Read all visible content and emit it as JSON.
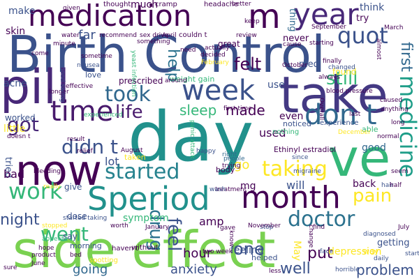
{
  "palette": {
    "dark_purple": "#440154",
    "indigo": "#3b528b",
    "blue": "#31688e",
    "teal": "#21918c",
    "green": "#35b779",
    "lime": "#90d743",
    "yellow": "#fde725",
    "navy": "#482878"
  },
  "words": [
    {
      "text": "Birth Control",
      "color": "#3b528b"
    },
    {
      "text": "side effect",
      "color": "#7ad151"
    },
    {
      "text": "day",
      "color": "#21918c"
    },
    {
      "text": "take",
      "color": "#443983"
    },
    {
      "text": "pill",
      "color": "#482878"
    },
    {
      "text": "now",
      "color": "#440154"
    },
    {
      "text": "ve",
      "color": "#35b779"
    },
    {
      "text": "Speriod",
      "color": "#21918c"
    },
    {
      "text": "month",
      "color": "#440154"
    },
    {
      "text": "medication",
      "color": "#440154"
    },
    {
      "text": "year",
      "color": "#482878"
    },
    {
      "text": "m",
      "color": "#440154"
    },
    {
      "text": "week",
      "color": "#3b528b"
    },
    {
      "text": "time",
      "color": "#481a6c"
    },
    {
      "text": "don t",
      "color": "#31688e"
    },
    {
      "text": "medicine",
      "color": "#1f9e89"
    },
    {
      "text": "quot",
      "color": "#3b528b"
    },
    {
      "text": "took",
      "color": "#31688e"
    },
    {
      "text": "started",
      "color": "#26828e"
    },
    {
      "text": "taking",
      "color": "#fde725"
    },
    {
      "text": "work",
      "color": "#35b779"
    },
    {
      "text": "doctor",
      "color": "#2c728e"
    },
    {
      "text": "got",
      "color": "#482878"
    },
    {
      "text": "didn t",
      "color": "#3b528b"
    },
    {
      "text": "life",
      "color": "#481a6c"
    },
    {
      "text": "feel",
      "color": "#3b528b"
    },
    {
      "text": "drug",
      "color": "#2c728e"
    },
    {
      "text": "went",
      "color": "#35b779"
    },
    {
      "text": "pain",
      "color": "#fde725"
    },
    {
      "text": "still",
      "color": "#35b779"
    },
    {
      "text": "first",
      "color": "#31688e"
    },
    {
      "text": "help",
      "color": "#2c728e"
    },
    {
      "text": "sleep",
      "color": "#35b779"
    },
    {
      "text": "made",
      "color": "#440154"
    },
    {
      "text": "felt",
      "color": "#440154"
    },
    {
      "text": "one",
      "color": "#3b528b"
    },
    {
      "text": "well",
      "color": "#3b528b"
    },
    {
      "text": "put",
      "color": "#440154"
    },
    {
      "text": "problem",
      "color": "#3b528b"
    },
    {
      "text": "hour",
      "color": "#440154"
    },
    {
      "text": "night",
      "color": "#3b528b"
    },
    {
      "text": "anxiety",
      "color": "#3b528b"
    },
    {
      "text": "going",
      "color": "#31688e"
    },
    {
      "text": "back",
      "color": "#440154"
    },
    {
      "text": "will",
      "color": "#3b528b"
    },
    {
      "text": "amp",
      "color": "#440154"
    },
    {
      "text": "mg",
      "color": "#440154"
    },
    {
      "text": "used",
      "color": "#440154"
    },
    {
      "text": "go",
      "color": "#fde725"
    },
    {
      "text": "depression",
      "color": "#fde725"
    },
    {
      "text": "good",
      "color": "#31688e"
    },
    {
      "text": "lot",
      "color": "#3b528b"
    },
    {
      "text": "even",
      "color": "#440154"
    },
    {
      "text": "use",
      "color": "#3b528b"
    },
    {
      "text": "far",
      "color": "#3b528b"
    },
    {
      "text": "much",
      "color": "#440154"
    },
    {
      "text": "make",
      "color": "#3b528b"
    },
    {
      "text": "skin",
      "color": "#440154"
    },
    {
      "text": "acne",
      "color": "#3b528b"
    },
    {
      "text": "little",
      "color": "#fde725"
    },
    {
      "text": "worked",
      "color": "#3b528b"
    },
    {
      "text": "tried",
      "color": "#3b528b"
    },
    {
      "text": "bad",
      "color": "#440154"
    },
    {
      "text": "give",
      "color": "#3b528b"
    },
    {
      "text": "symptom",
      "color": "#35b779"
    },
    {
      "text": "feeling",
      "color": "#3b528b"
    },
    {
      "text": "May",
      "color": "#fde725"
    },
    {
      "text": "getting",
      "color": "#3b528b"
    },
    {
      "text": "think",
      "color": "#3b528b"
    },
    {
      "text": "try",
      "color": "#440154"
    },
    {
      "text": "never",
      "color": "#440154"
    },
    {
      "text": "thing",
      "color": "#31688e"
    },
    {
      "text": "med",
      "color": "#3b528b"
    },
    {
      "text": "found",
      "color": "#fde725"
    },
    {
      "text": "say",
      "color": "#3b528b"
    },
    {
      "text": "morning",
      "color": "#3b528b"
    },
    {
      "text": "love",
      "color": "#3b528b"
    },
    {
      "text": "weight gain",
      "color": "#35b779"
    },
    {
      "text": "prescribed",
      "color": "#440154"
    },
    {
      "text": "dose",
      "color": "#3b528b"
    },
    {
      "text": "body",
      "color": "#440154"
    },
    {
      "text": "helped",
      "color": "#3b528b"
    },
    {
      "text": "noticed",
      "color": "#3b528b"
    },
    {
      "text": "Ethinyl estradiol",
      "color": "#440154"
    },
    {
      "text": "nothing",
      "color": "#35b779"
    },
    {
      "text": "experience",
      "color": "#3b528b"
    },
    {
      "text": "able",
      "color": "#35b779"
    },
    {
      "text": "taken",
      "color": "#fde725"
    },
    {
      "text": "haven t",
      "color": "#440154"
    },
    {
      "text": "without",
      "color": "#440154"
    },
    {
      "text": "couldn t",
      "color": "#440154"
    },
    {
      "text": "headache",
      "color": "#440154"
    },
    {
      "text": "thought",
      "color": "#440154"
    },
    {
      "text": "cramp",
      "color": "#440154"
    },
    {
      "text": "given",
      "color": "#440154"
    },
    {
      "text": "trying",
      "color": "#440154"
    },
    {
      "text": "happy",
      "color": "#3b528b"
    },
    {
      "text": "right",
      "color": "#31688e"
    },
    {
      "text": "people",
      "color": "#31688e"
    },
    {
      "text": "since",
      "color": "#3b528b"
    },
    {
      "text": "migraine",
      "color": "#3b528b"
    },
    {
      "text": "gave",
      "color": "#440154"
    },
    {
      "text": "stop",
      "color": "#3b528b"
    },
    {
      "text": "hair",
      "color": "#3b528b"
    },
    {
      "text": "diagnosed",
      "color": "#3b528b"
    },
    {
      "text": "November",
      "color": "#440154"
    },
    {
      "text": "find",
      "color": "#440154"
    },
    {
      "text": "July",
      "color": "#440154"
    },
    {
      "text": "face",
      "color": "#3b528b"
    },
    {
      "text": "daily",
      "color": "#3b528b"
    },
    {
      "text": "way",
      "color": "#fde725"
    },
    {
      "text": "start",
      "color": "#3b528b"
    },
    {
      "text": "horrible",
      "color": "#3b528b"
    },
    {
      "text": "less",
      "color": "#440154"
    },
    {
      "text": "two week",
      "color": "#440154"
    },
    {
      "text": "hope",
      "color": "#440154"
    },
    {
      "text": "product",
      "color": "#440154"
    },
    {
      "text": "June",
      "color": "#440154"
    },
    {
      "text": "bed",
      "color": "#440154"
    },
    {
      "text": "spotting",
      "color": "#fde725"
    },
    {
      "text": "started taking",
      "color": "#3b528b"
    },
    {
      "text": "worth",
      "color": "#440154"
    },
    {
      "text": "January",
      "color": "#440154"
    },
    {
      "text": "stopped",
      "color": "#fde725"
    },
    {
      "text": "appetite",
      "color": "#35b779"
    },
    {
      "text": "treatment",
      "color": "#440154"
    },
    {
      "text": "wash",
      "color": "#3b528b"
    },
    {
      "text": "half",
      "color": "#440154"
    },
    {
      "text": "seem",
      "color": "#440154"
    },
    {
      "text": "really",
      "color": "#fde725"
    },
    {
      "text": "sure",
      "color": "#440154"
    },
    {
      "text": "bleeding",
      "color": "#440154"
    },
    {
      "text": "doesn t",
      "color": "#440154"
    },
    {
      "text": "August",
      "color": "#440154"
    },
    {
      "text": "relief",
      "color": "#440154"
    },
    {
      "text": "result",
      "color": "#440154"
    },
    {
      "text": "experienced",
      "color": "#35b779"
    },
    {
      "text": "longer",
      "color": "#440154"
    },
    {
      "text": "effective",
      "color": "#440154"
    },
    {
      "text": "mood swing",
      "color": "#3b528b"
    },
    {
      "text": "nausea",
      "color": "#3b528b"
    },
    {
      "text": "sex drive",
      "color": "#440154"
    },
    {
      "text": "April",
      "color": "#440154"
    },
    {
      "text": "something",
      "color": "#440154"
    },
    {
      "text": "recommend",
      "color": "#440154"
    },
    {
      "text": "water",
      "color": "#440154"
    },
    {
      "text": "minute",
      "color": "#440154"
    },
    {
      "text": "come",
      "color": "#440154"
    },
    {
      "text": "sometime",
      "color": "#440154"
    },
    {
      "text": "yeast infection",
      "color": "#35b779"
    },
    {
      "text": "October",
      "color": "#440154"
    },
    {
      "text": "September",
      "color": "#440154"
    },
    {
      "text": "starting",
      "color": "#440154"
    },
    {
      "text": "finally",
      "color": "#440154"
    },
    {
      "text": "changed",
      "color": "#3b528b"
    },
    {
      "text": "blood pressure",
      "color": "#440154"
    },
    {
      "text": "decided",
      "color": "#440154"
    },
    {
      "text": "February",
      "color": "#fde725"
    },
    {
      "text": "actually",
      "color": "#440154"
    },
    {
      "text": "great",
      "color": "#440154"
    },
    {
      "text": "review",
      "color": "#440154"
    },
    {
      "text": "first time",
      "color": "#440154"
    },
    {
      "text": "caused",
      "color": "#440154"
    },
    {
      "text": "anything",
      "color": "#440154"
    },
    {
      "text": "long",
      "color": "#440154"
    },
    {
      "text": "December",
      "color": "#fde725"
    },
    {
      "text": "normal",
      "color": "#440154"
    },
    {
      "text": "almost",
      "color": "#440154"
    },
    {
      "text": "March",
      "color": "#440154"
    },
    {
      "text": "better",
      "color": "#440154"
    },
    {
      "text": "keep",
      "color": "#440154"
    },
    {
      "text": "cause",
      "color": "#440154"
    },
    {
      "text": "need",
      "color": "#440154"
    },
    {
      "text": "around",
      "color": "#440154"
    },
    {
      "text": "know",
      "color": "#440154"
    },
    {
      "text": "change",
      "color": "#440154"
    },
    {
      "text": "Overall",
      "color": "#440154"
    },
    {
      "text": "panic attack",
      "color": "#35b779"
    },
    {
      "text": "last",
      "color": "#440154"
    },
    {
      "text": "always",
      "color": "#440154"
    }
  ]
}
